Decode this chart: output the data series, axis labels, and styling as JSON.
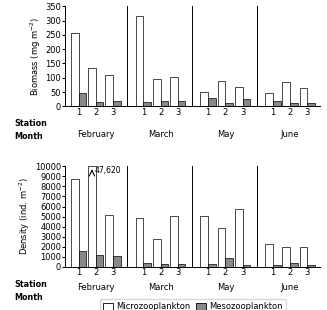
{
  "biomass_micro": [
    255,
    135,
    110,
    315,
    95,
    103,
    50,
    90,
    68,
    48,
    85,
    65
  ],
  "biomass_meso": [
    45,
    15,
    18,
    15,
    20,
    18,
    28,
    12,
    25,
    20,
    10,
    10
  ],
  "density_micro": [
    8700,
    10000,
    5200,
    4900,
    2800,
    5100,
    5100,
    3900,
    5800,
    2250,
    2000,
    1950
  ],
  "density_meso": [
    1600,
    1200,
    1100,
    400,
    300,
    300,
    250,
    900,
    200,
    150,
    400,
    200
  ],
  "months": [
    "February",
    "March",
    "May",
    "June"
  ],
  "stations": [
    "1",
    "2",
    "3"
  ],
  "biomass_ylabel": "Biomass (mg m$^{-2}$)",
  "density_ylabel": "Density (ind. m$^{-2}$)",
  "biomass_ylim": [
    0,
    350
  ],
  "biomass_yticks": [
    0,
    50,
    100,
    150,
    200,
    250,
    300,
    350
  ],
  "density_ylim": [
    0,
    10000
  ],
  "density_yticks": [
    0,
    1000,
    2000,
    3000,
    4000,
    5000,
    6000,
    7000,
    8000,
    9000,
    10000
  ],
  "arrow_label": "47,620",
  "micro_color": "white",
  "meso_color": "#888888",
  "edge_color": "black",
  "legend_micro": "Microzooplankton",
  "legend_meso": "Mesozooplankton",
  "figsize": [
    3.27,
    3.1
  ],
  "dpi": 100
}
